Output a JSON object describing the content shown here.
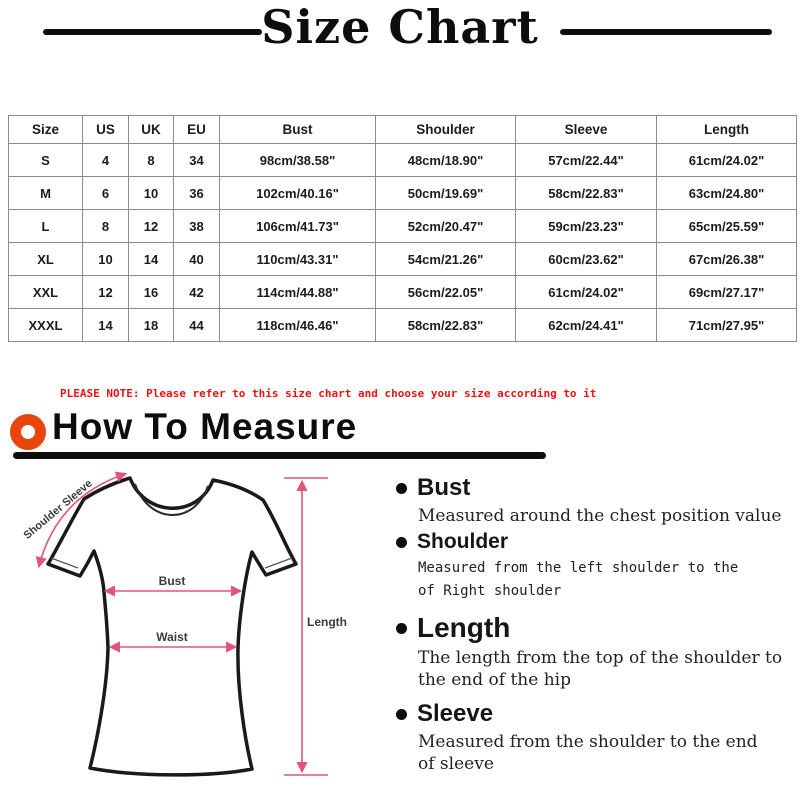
{
  "page_title": "Size Chart",
  "size_table": {
    "headers": [
      "Size",
      "US",
      "UK",
      "EU",
      "Bust",
      "Shoulder",
      "Sleeve",
      "Length"
    ],
    "rows": [
      [
        "S",
        "4",
        "8",
        "34",
        "98cm/38.58\"",
        "48cm/18.90\"",
        "57cm/22.44\"",
        "61cm/24.02\""
      ],
      [
        "M",
        "6",
        "10",
        "36",
        "102cm/40.16\"",
        "50cm/19.69\"",
        "58cm/22.83\"",
        "63cm/24.80\""
      ],
      [
        "L",
        "8",
        "12",
        "38",
        "106cm/41.73\"",
        "52cm/20.47\"",
        "59cm/23.23\"",
        "65cm/25.59\""
      ],
      [
        "XL",
        "10",
        "14",
        "40",
        "110cm/43.31\"",
        "54cm/21.26\"",
        "60cm/23.62\"",
        "67cm/26.38\""
      ],
      [
        "XXL",
        "12",
        "16",
        "42",
        "114cm/44.88\"",
        "56cm/22.05\"",
        "61cm/24.02\"",
        "69cm/27.17\""
      ],
      [
        "XXXL",
        "14",
        "18",
        "44",
        "118cm/46.46\"",
        "58cm/22.83\"",
        "62cm/24.41\"",
        "71cm/27.95\""
      ]
    ]
  },
  "note_text": "PLEASE NOTE: Please refer to this size chart and choose your size according to it",
  "measure_section": {
    "title": "How To Measure"
  },
  "diagram_labels": {
    "shoulder_sleeve": "Shoulder Sleeve",
    "bust": "Bust",
    "waist": "Waist",
    "length": "Length"
  },
  "measure_items": [
    {
      "heading": "Bust",
      "line1": "Measured around the chest position value",
      "line2": ""
    },
    {
      "heading": "Shoulder",
      "line1": "Measured from the left shoulder to the",
      "line2": "of Right shoulder"
    },
    {
      "heading": "Length",
      "line1": "The length from the top of the shoulder to",
      "line2": "the end of the hip"
    },
    {
      "heading": "Sleeve",
      "line1": "Measured from the shoulder to the end",
      "line2": "of sleeve"
    }
  ],
  "colors": {
    "note_red": "#ee1111",
    "accent_orange": "#e8450e",
    "arrow_pink": "#e25576",
    "table_border": "#8c8c8c"
  }
}
